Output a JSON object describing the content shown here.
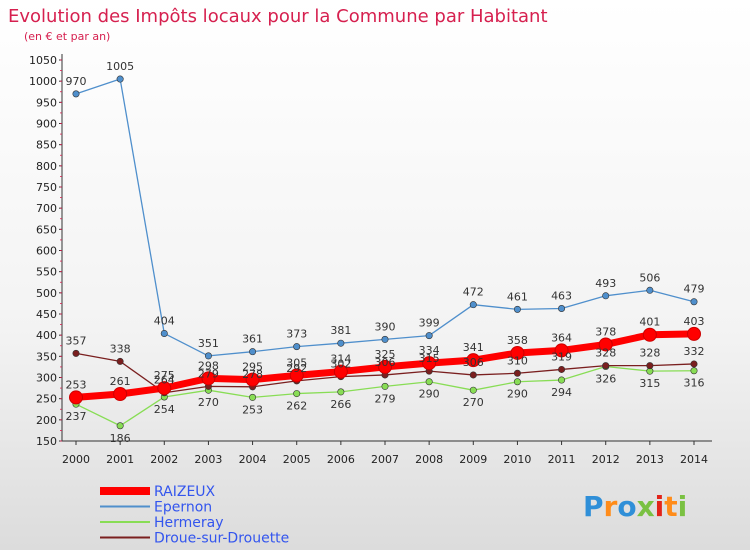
{
  "chart_data": {
    "type": "line",
    "title": "Evolution des Impôts locaux pour la Commune par Habitant",
    "subtitle": "(en € et par an)",
    "xlabel": "",
    "ylabel": "",
    "ylim": [
      150,
      1050
    ],
    "yticks": [
      150,
      200,
      250,
      300,
      350,
      400,
      450,
      500,
      550,
      600,
      650,
      700,
      750,
      800,
      850,
      900,
      950,
      1000,
      1050
    ],
    "categories": [
      "2000",
      "2001",
      "2002",
      "2003",
      "2004",
      "2005",
      "2006",
      "2007",
      "2008",
      "2009",
      "2010",
      "2011",
      "2012",
      "2013",
      "2014"
    ],
    "series": [
      {
        "name": "RAIZEUX",
        "color": "#ff0000",
        "values": [
          253,
          261,
          275,
          298,
          295,
          305,
          314,
          325,
          334,
          341,
          358,
          364,
          378,
          401,
          403
        ],
        "labels": [
          "253",
          "261",
          "275",
          "298",
          "295",
          "305",
          "314",
          "325",
          "334",
          "341",
          "358",
          "364",
          "378",
          "401",
          "403"
        ]
      },
      {
        "name": "Epernon",
        "color": "#4f8fcc",
        "values": [
          970,
          1005,
          404,
          351,
          361,
          373,
          381,
          390,
          399,
          472,
          461,
          463,
          493,
          506,
          479
        ],
        "labels": [
          "970",
          "1005",
          "404",
          "351",
          "361",
          "373",
          "381",
          "390",
          "399",
          "472",
          "461",
          "463",
          "493",
          "506",
          "479"
        ]
      },
      {
        "name": "Hermeray",
        "color": "#88dd55",
        "values": [
          237,
          186,
          254,
          270,
          253,
          262,
          266,
          279,
          290,
          270,
          290,
          294,
          326,
          315,
          316
        ],
        "labels": [
          "237",
          "186",
          "254",
          "270",
          "253",
          "262",
          "266",
          "279",
          "290",
          "270",
          "290",
          "294",
          "326",
          "315",
          "316"
        ]
      },
      {
        "name": "Droue-sur-Drouette",
        "color": "#7a1f1f",
        "values": [
          357,
          338,
          264,
          279,
          278,
          292,
          302,
          306,
          315,
          306,
          310,
          319,
          328,
          328,
          332
        ],
        "labels": [
          "357",
          "338",
          "264",
          "279",
          "278",
          "292",
          "302",
          "306",
          "315",
          "306",
          "310",
          "319",
          "328",
          "328",
          "332"
        ]
      }
    ],
    "legend_position": "bottom-left",
    "grid": false
  },
  "branding": {
    "logo_text": "Proxiti",
    "letter_colors": [
      "#2f8fd8",
      "#ff8c1a",
      "#2f8fd8",
      "#7ac142",
      "#e2231a",
      "#ff8c1a",
      "#7ac142"
    ]
  },
  "colors": {
    "title": "#d6204f",
    "axis": "#333333",
    "legend_text": "#3355ee"
  }
}
